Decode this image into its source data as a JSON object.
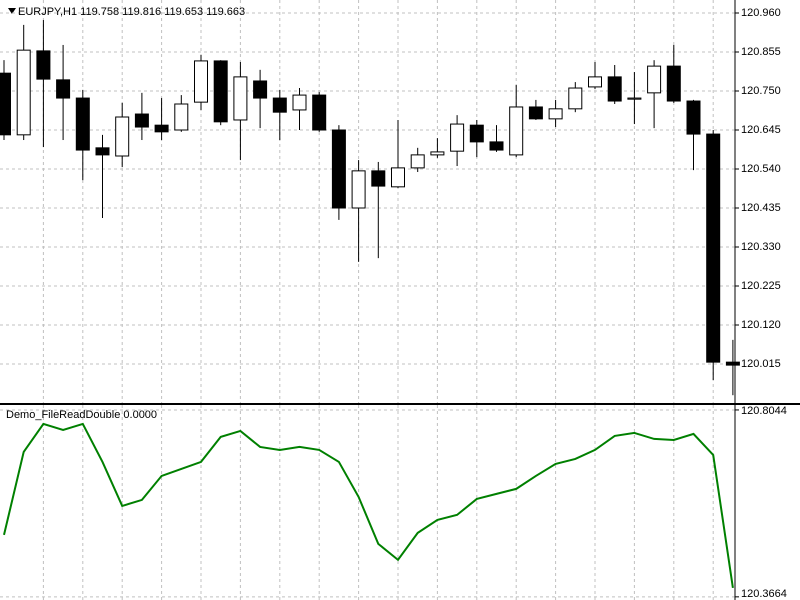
{
  "chart_data": [
    {
      "type": "candlestick",
      "title": "EURJPY,H1  119.758 119.816 119.653 119.663",
      "open": [
        120.798,
        120.632,
        120.858,
        120.78,
        120.731,
        120.597,
        120.575,
        120.688,
        120.658,
        120.645,
        120.72,
        120.831,
        120.672,
        120.777,
        120.731,
        120.699,
        120.739,
        120.645,
        120.435,
        120.535,
        120.492,
        120.543,
        120.578,
        120.588,
        120.658,
        120.613,
        120.578,
        120.707,
        120.675,
        120.702,
        120.761,
        120.788,
        120.728,
        120.745,
        120.817,
        120.723,
        120.634,
        120.02
      ],
      "high": [
        120.833,
        120.928,
        120.941,
        120.874,
        120.753,
        120.632,
        120.718,
        120.745,
        120.731,
        120.739,
        120.847,
        120.833,
        120.828,
        120.807,
        120.753,
        120.758,
        120.747,
        120.658,
        120.564,
        120.559,
        120.672,
        120.597,
        120.623,
        120.685,
        120.672,
        120.658,
        120.766,
        120.726,
        120.726,
        120.774,
        120.828,
        120.82,
        120.801,
        120.833,
        120.874,
        120.726,
        120.645,
        120.08
      ],
      "low": [
        120.618,
        120.618,
        120.599,
        120.618,
        120.51,
        120.408,
        120.545,
        120.618,
        120.618,
        120.64,
        120.699,
        120.658,
        120.564,
        120.65,
        120.618,
        120.645,
        120.64,
        120.403,
        120.29,
        120.3,
        120.489,
        120.532,
        120.57,
        120.548,
        120.572,
        120.586,
        120.572,
        120.672,
        120.653,
        120.693,
        120.755,
        120.715,
        120.661,
        120.65,
        120.718,
        120.537,
        119.972,
        119.931
      ],
      "close": [
        120.632,
        120.86,
        120.782,
        120.731,
        120.591,
        120.578,
        120.68,
        120.653,
        120.64,
        120.715,
        120.831,
        120.667,
        120.788,
        120.731,
        120.693,
        120.739,
        120.645,
        120.435,
        120.535,
        120.494,
        120.543,
        120.578,
        120.586,
        120.661,
        120.613,
        120.591,
        120.707,
        120.675,
        120.702,
        120.758,
        120.788,
        120.723,
        120.731,
        120.817,
        120.723,
        120.634,
        120.02,
        120.012
      ],
      "up_color": "#ffffff",
      "down_color": "#000000",
      "wick_color": "#000000",
      "ylim": [
        119.91,
        120.995
      ],
      "yticks": [
        {
          "value": 120.96,
          "label": "120.960"
        },
        120.855,
        {
          "value": 120.75,
          "label": "120.750"
        },
        120.645,
        {
          "value": 120.54,
          "label": "120.540"
        },
        120.435,
        {
          "value": 120.33,
          "label": "120.330"
        },
        120.225,
        {
          "value": 120.12,
          "label": "120.120"
        },
        120.015
      ],
      "grid": true
    },
    {
      "type": "line",
      "title": "Demo_FileReadDouble 0.0000",
      "color": "#008000",
      "values": [
        120.5116,
        120.706,
        120.7716,
        120.7576,
        120.7716,
        120.6826,
        120.5795,
        120.5936,
        120.6498,
        120.6662,
        120.6826,
        120.7412,
        120.7552,
        120.7177,
        120.7107,
        120.7177,
        120.7107,
        120.6826,
        120.6006,
        120.4905,
        120.4531,
        120.5163,
        120.5468,
        120.5585,
        120.5959,
        120.6077,
        120.6194,
        120.6498,
        120.6779,
        120.6896,
        120.7107,
        120.7435,
        120.7505,
        120.7365,
        120.7341,
        120.7482,
        120.699,
        120.3875
      ],
      "ylim": [
        120.359,
        120.816
      ],
      "yticks": [
        120.8044,
        120.3664
      ],
      "grid": true
    }
  ]
}
